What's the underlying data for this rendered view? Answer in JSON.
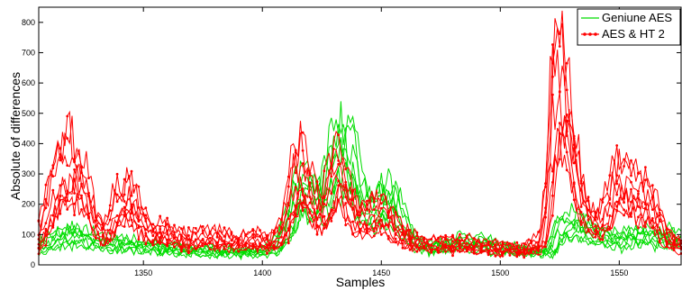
{
  "chart_data": {
    "type": "line",
    "xlabel": "Samples",
    "ylabel": "Absolute of differences",
    "xlim": [
      1306,
      1576
    ],
    "ylim": [
      0,
      850
    ],
    "x_ticks": [
      1350,
      1400,
      1450,
      1500,
      1550
    ],
    "y_ticks": [
      0,
      100,
      200,
      300,
      400,
      500,
      600,
      700,
      800
    ],
    "grid": false,
    "legend_position": "top-right",
    "legend": [
      {
        "label": "Geniune AES",
        "color": "#00dd00",
        "marker": "none"
      },
      {
        "label": "AES & HT 2",
        "color": "#ff0000",
        "marker": "dot"
      }
    ],
    "series": [
      {
        "name": "Geniune AES",
        "color": "#00dd00",
        "trace_count": 8,
        "envelope": {
          "x": [
            1306,
            1315,
            1322,
            1330,
            1340,
            1350,
            1360,
            1370,
            1380,
            1390,
            1400,
            1405,
            1410,
            1415,
            1420,
            1425,
            1430,
            1433,
            1436,
            1440,
            1445,
            1450,
            1455,
            1460,
            1465,
            1470,
            1480,
            1490,
            1500,
            1510,
            1520,
            1525,
            1530,
            1535,
            1540,
            1545,
            1550,
            1555,
            1560,
            1565,
            1570,
            1576
          ],
          "y": [
            60,
            120,
            120,
            90,
            80,
            70,
            60,
            50,
            45,
            45,
            40,
            60,
            150,
            330,
            320,
            280,
            460,
            520,
            500,
            320,
            220,
            300,
            260,
            150,
            80,
            60,
            80,
            90,
            60,
            50,
            40,
            150,
            190,
            150,
            120,
            110,
            100,
            120,
            130,
            110,
            110,
            100
          ]
        }
      },
      {
        "name": "AES & HT 2",
        "color": "#ff0000",
        "trace_count": 8,
        "envelope": {
          "x": [
            1306,
            1310,
            1315,
            1320,
            1325,
            1330,
            1335,
            1340,
            1345,
            1350,
            1355,
            1360,
            1370,
            1380,
            1390,
            1400,
            1405,
            1410,
            1414,
            1418,
            1422,
            1426,
            1430,
            1433,
            1436,
            1440,
            1445,
            1450,
            1455,
            1460,
            1465,
            1470,
            1480,
            1490,
            1500,
            1510,
            1518,
            1521,
            1523,
            1525,
            1527,
            1530,
            1535,
            1540,
            1545,
            1550,
            1555,
            1560,
            1565,
            1570,
            1576
          ],
          "y": [
            60,
            200,
            400,
            450,
            400,
            200,
            120,
            270,
            290,
            200,
            130,
            130,
            100,
            110,
            90,
            100,
            80,
            150,
            350,
            420,
            300,
            200,
            350,
            410,
            330,
            200,
            200,
            230,
            180,
            120,
            90,
            80,
            80,
            70,
            60,
            50,
            80,
            300,
            700,
            840,
            790,
            600,
            300,
            160,
            210,
            370,
            330,
            300,
            250,
            130,
            70
          ]
        }
      }
    ]
  }
}
